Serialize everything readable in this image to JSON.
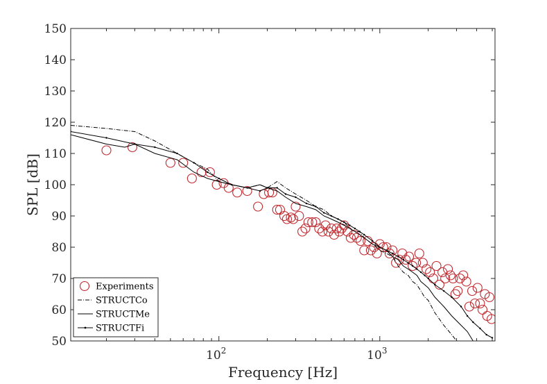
{
  "chart_data": {
    "type": "line",
    "x_scale": "log",
    "xlabel": "Frequency [Hz]",
    "ylabel": "SPL [dB]",
    "xlim": [
      12,
      5200
    ],
    "ylim": [
      50,
      150
    ],
    "y_ticks": [
      {
        "value": 50,
        "label": "50"
      },
      {
        "value": 60,
        "label": "60"
      },
      {
        "value": 70,
        "label": "70"
      },
      {
        "value": 80,
        "label": "80"
      },
      {
        "value": 90,
        "label": "90"
      },
      {
        "value": 100,
        "label": "100"
      },
      {
        "value": 110,
        "label": "110"
      },
      {
        "value": 120,
        "label": "120"
      },
      {
        "value": 130,
        "label": "130"
      },
      {
        "value": 140,
        "label": "140"
      },
      {
        "value": 150,
        "label": "150"
      }
    ],
    "x_ticks": [
      {
        "value": 100,
        "base": "10",
        "exp": "2"
      },
      {
        "value": 1000,
        "base": "10",
        "exp": "3"
      }
    ],
    "legend": {
      "placement": "bottom-left",
      "entries": [
        "Experiments",
        "STRUCTCo",
        "STRUCTMe",
        "STRUCTFi"
      ]
    },
    "series": [
      {
        "name": "Experiments",
        "style": "circles",
        "color": "#c0272d",
        "x": [
          20,
          29,
          50,
          60,
          68,
          78,
          88,
          97,
          107,
          115,
          130,
          150,
          175,
          190,
          205,
          215,
          230,
          240,
          255,
          265,
          280,
          290,
          300,
          315,
          330,
          345,
          360,
          380,
          400,
          420,
          440,
          460,
          480,
          500,
          520,
          540,
          560,
          580,
          600,
          630,
          660,
          690,
          720,
          760,
          800,
          840,
          880,
          920,
          960,
          1000,
          1050,
          1100,
          1150,
          1200,
          1260,
          1320,
          1380,
          1450,
          1520,
          1600,
          1680,
          1760,
          1850,
          1950,
          2050,
          2150,
          2250,
          2350,
          2450,
          2550,
          2650,
          2750,
          2850,
          2950,
          3050,
          3150,
          3300,
          3450,
          3600,
          3750,
          3900,
          4050,
          4200,
          4350,
          4500,
          4650,
          4800,
          4950
        ],
        "y": [
          111,
          112,
          107,
          107,
          102,
          104,
          104,
          100,
          100.5,
          99,
          97.5,
          98,
          93,
          97,
          97.5,
          97.5,
          92,
          92,
          90,
          89,
          89.5,
          89,
          93,
          90,
          85,
          86,
          88,
          88,
          88,
          86,
          85,
          87,
          85,
          86,
          84,
          86,
          85,
          86,
          87,
          85,
          83,
          84,
          83,
          82,
          79,
          82,
          79,
          80,
          78,
          81,
          80,
          80,
          78,
          79,
          75,
          76,
          78,
          76,
          77,
          74,
          75,
          78,
          75,
          73,
          72,
          70,
          74,
          68,
          72,
          70,
          73,
          71,
          70,
          65,
          66,
          70,
          71,
          69,
          61,
          66,
          62,
          67,
          62,
          60,
          65,
          58,
          64,
          57
        ]
      },
      {
        "name": "STRUCTCo",
        "style": "dash-dot",
        "color": "#000000",
        "x": [
          12,
          20,
          30,
          40,
          55,
          70,
          85,
          100,
          120,
          150,
          180,
          200,
          230,
          260,
          300,
          350,
          400,
          450,
          500,
          550,
          600,
          650,
          700,
          750,
          800,
          900,
          1000,
          1100,
          1200,
          1300,
          1400,
          1500,
          1600,
          1700,
          1800,
          1900,
          2000,
          2200,
          2500,
          2800,
          3000
        ],
        "y": [
          119,
          118,
          117,
          114,
          110,
          107,
          105,
          101,
          100,
          99,
          100,
          99,
          101,
          99,
          97,
          95,
          93,
          92,
          90,
          89,
          88,
          86,
          85,
          85,
          83,
          81,
          79,
          78,
          77,
          74,
          72,
          71,
          69,
          68,
          66,
          64,
          63,
          59,
          55,
          52,
          50
        ]
      },
      {
        "name": "STRUCTMe",
        "style": "solid",
        "color": "#000000",
        "x": [
          12,
          20,
          26,
          30,
          40,
          55,
          70,
          85,
          100,
          120,
          150,
          180,
          200,
          230,
          260,
          300,
          350,
          400,
          450,
          500,
          550,
          600,
          650,
          700,
          750,
          800,
          900,
          1000,
          1100,
          1200,
          1300,
          1400,
          1500,
          1600,
          1700,
          1800,
          1900,
          2000,
          2200,
          2500,
          2800,
          3200,
          3500,
          3800
        ],
        "y": [
          116,
          113,
          112,
          113,
          110,
          108,
          104,
          102,
          101,
          100,
          99,
          100,
          99,
          98,
          96,
          94,
          93,
          92,
          90,
          89,
          88,
          87,
          86,
          85,
          84,
          83,
          81,
          80,
          79,
          77,
          76,
          74,
          73,
          72,
          71,
          69,
          68,
          67,
          64,
          61,
          58,
          55,
          53,
          50
        ]
      },
      {
        "name": "STRUCTFi",
        "style": "solid-dots",
        "color": "#000000",
        "x": [
          12,
          20,
          30,
          40,
          55,
          70,
          85,
          100,
          120,
          150,
          180,
          200,
          230,
          260,
          300,
          350,
          400,
          450,
          500,
          550,
          600,
          650,
          700,
          750,
          800,
          900,
          1000,
          1100,
          1200,
          1300,
          1400,
          1500,
          1600,
          1700,
          1800,
          1900,
          2000,
          2200,
          2500,
          2800,
          3200,
          3500,
          3800,
          4200,
          4600,
          5000
        ],
        "y": [
          117,
          115,
          113,
          112,
          110,
          107,
          104,
          102,
          100,
          99,
          98,
          99,
          99,
          97,
          96,
          94,
          93,
          91,
          90,
          89,
          88,
          87,
          86,
          85,
          84,
          82,
          80,
          79,
          78,
          77,
          76,
          75,
          74,
          73,
          72,
          71,
          70,
          68,
          66,
          64,
          61,
          58,
          56,
          54,
          52,
          51
        ]
      }
    ]
  }
}
